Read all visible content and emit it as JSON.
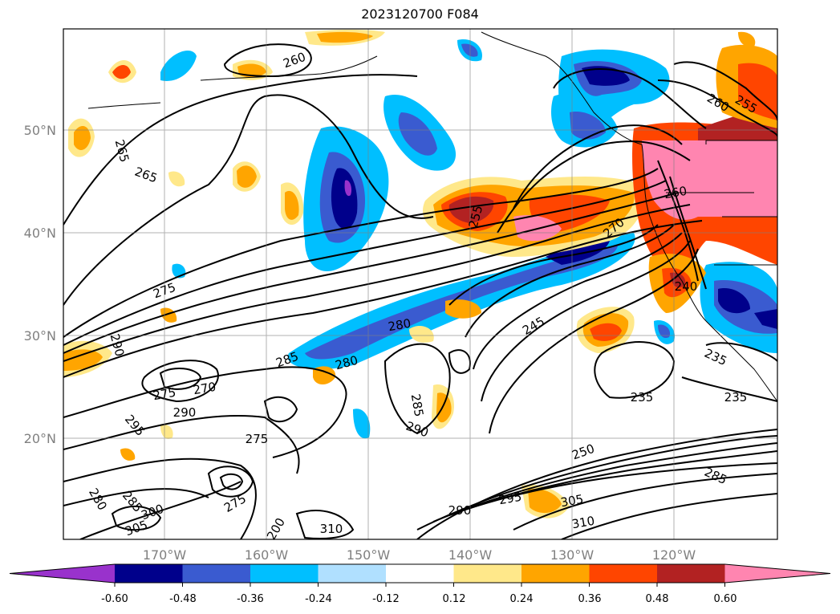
{
  "title": "2023120700 F084",
  "lat_labels": [
    "50°N",
    "40°N",
    "30°N",
    "20°N"
  ],
  "lon_labels": [
    "170°W",
    "160°W",
    "150°W",
    "140°W",
    "130°W",
    "120°W"
  ],
  "colorbar": {
    "labels": [
      "-0.60",
      "-0.48",
      "-0.36",
      "-0.24",
      "-0.12",
      "0.12",
      "0.24",
      "0.36",
      "0.48",
      "0.60"
    ],
    "colors": [
      "#9932cc",
      "#00008b",
      "#3a5bd0",
      "#00bfff",
      "#b0e0ff",
      "#ffffff",
      "#ffe88a",
      "#ffa500",
      "#ff4500",
      "#b22222",
      "#ff85b0"
    ]
  },
  "contour_labels": [
    "260",
    "255",
    "265",
    "265",
    "260",
    "260",
    "270",
    "275",
    "255",
    "240",
    "280",
    "245",
    "235",
    "290",
    "285",
    "280",
    "270",
    "275",
    "290",
    "285",
    "235",
    "235",
    "295",
    "290",
    "275",
    "250",
    "285",
    "280",
    "285",
    "275",
    "295",
    "290",
    "305",
    "200",
    "310",
    "310",
    "300",
    "305"
  ]
}
